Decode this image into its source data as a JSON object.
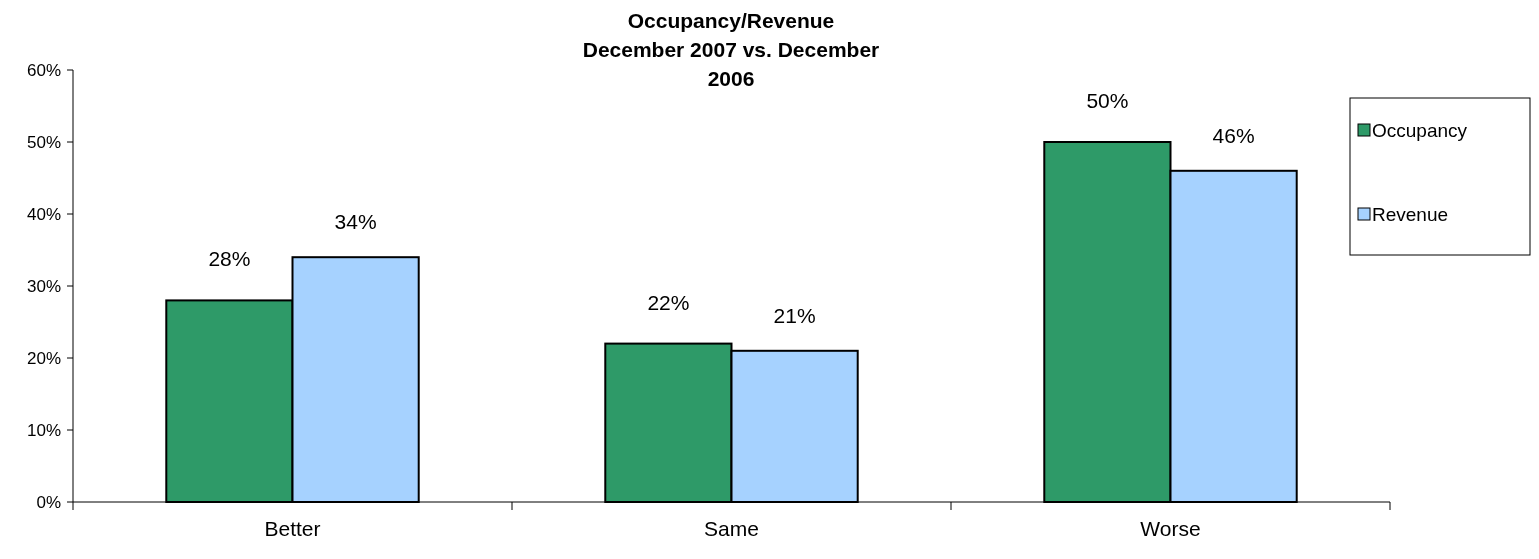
{
  "chart_data": {
    "type": "bar",
    "title": "Occupancy/Revenue",
    "subtitle": "December 2007 vs. December 2006",
    "categories": [
      "Better",
      "Same",
      "Worse"
    ],
    "series": [
      {
        "name": "Occupancy",
        "color": "#2e9a68",
        "values": [
          28,
          22,
          50
        ],
        "value_labels": [
          "28%",
          "22%",
          "50%"
        ]
      },
      {
        "name": "Revenue",
        "color": "#a6d2ff",
        "values": [
          34,
          21,
          46
        ],
        "value_labels": [
          "34%",
          "21%",
          "46%"
        ]
      }
    ],
    "ylim": [
      0,
      60
    ],
    "yticks": [
      {
        "value": 0,
        "label": "0%"
      },
      {
        "value": 10,
        "label": "10%"
      },
      {
        "value": 20,
        "label": "20%"
      },
      {
        "value": 30,
        "label": "30%"
      },
      {
        "value": 40,
        "label": "40%"
      },
      {
        "value": 50,
        "label": "50%"
      },
      {
        "value": 60,
        "label": "60%"
      }
    ],
    "grid": false,
    "legend": "right"
  }
}
